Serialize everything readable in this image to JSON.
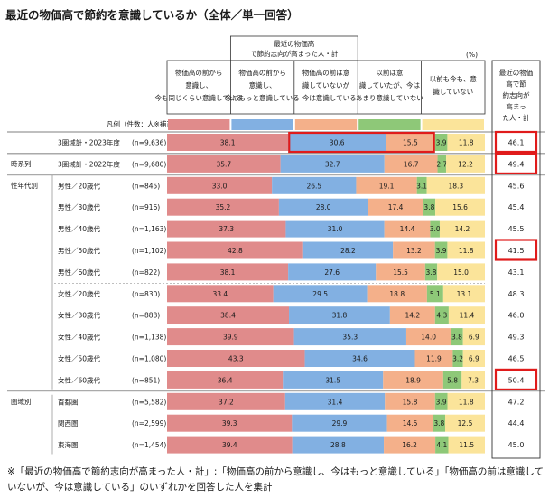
{
  "title": "最近の物価高で節約を意識しているか（全体／単一回答）",
  "footnote": "※「最近の物価高で節約志向が高まった人・計」:「物価高の前から意識し、今はもっと意識している」「物価高の前は意識していないが、今は意識している」のいずれかを回答した人を集計",
  "chart_data": {
    "type": "bar",
    "stacked": true,
    "orientation": "horizontal",
    "unit": "(%)",
    "group_header": "最近の物価高で節約志向が高まった人・計",
    "legend_row_label": "凡例（件数：人※補正後）",
    "total_column_label": "最近の物価高で節約志向が高まった人・計",
    "series": [
      {
        "name": "物価高の前から意識し、今も同じくらい意識している",
        "color": "#e08b8b"
      },
      {
        "name": "物価高の前から意識し、今はもっと意識している",
        "color": "#82b0e2"
      },
      {
        "name": "物価高の前は意識していないが、今は意識している",
        "color": "#f4b08a"
      },
      {
        "name": "以前は意識していたが、今はあまり意識していない",
        "color": "#8ec878"
      },
      {
        "name": "以前も今も、意識していない",
        "color": "#fbe49a"
      }
    ],
    "sections": [
      {
        "label": "",
        "start": 0
      },
      {
        "label": "時系列",
        "start": 1
      },
      {
        "label": "性年代別",
        "start": 2
      },
      {
        "label": "圏域別",
        "start": 12
      }
    ],
    "rows": [
      {
        "label": "3圏域計・2023年度",
        "n": "(n=9,636)",
        "values": [
          38.1,
          30.6,
          15.5,
          3.9,
          11.8
        ],
        "total": "46.1",
        "highlight": true,
        "box_mid": true
      },
      {
        "label": "3圏域計・2022年度",
        "n": "(n=9,680)",
        "values": [
          35.7,
          32.7,
          16.7,
          2.7,
          12.2
        ],
        "total": "49.4",
        "highlight": true
      },
      {
        "label": "男性／20歳代",
        "n": "(n=845)",
        "values": [
          33.0,
          26.5,
          19.1,
          3.1,
          18.3
        ],
        "total": "45.6"
      },
      {
        "label": "男性／30歳代",
        "n": "(n=916)",
        "values": [
          35.2,
          28.0,
          17.4,
          3.8,
          15.6
        ],
        "total": "45.4"
      },
      {
        "label": "男性／40歳代",
        "n": "(n=1,163)",
        "values": [
          37.3,
          31.0,
          14.4,
          3.0,
          14.2
        ],
        "total": "45.5"
      },
      {
        "label": "男性／50歳代",
        "n": "(n=1,102)",
        "values": [
          42.8,
          28.2,
          13.2,
          3.9,
          11.8
        ],
        "total": "41.5",
        "highlight": true
      },
      {
        "label": "男性／60歳代",
        "n": "(n=822)",
        "values": [
          38.1,
          27.6,
          15.5,
          3.8,
          15.0
        ],
        "total": "43.1"
      },
      {
        "label": "女性／20歳代",
        "n": "(n=830)",
        "values": [
          33.4,
          29.5,
          18.8,
          5.1,
          13.1
        ],
        "total": "48.3"
      },
      {
        "label": "女性／30歳代",
        "n": "(n=888)",
        "values": [
          38.4,
          31.8,
          14.2,
          4.3,
          11.4
        ],
        "total": "46.0"
      },
      {
        "label": "女性／40歳代",
        "n": "(n=1,138)",
        "values": [
          39.9,
          35.3,
          14.0,
          3.8,
          6.9
        ],
        "total": "49.3"
      },
      {
        "label": "女性／50歳代",
        "n": "(n=1,080)",
        "values": [
          43.3,
          34.6,
          11.9,
          3.2,
          6.9
        ],
        "total": "46.5"
      },
      {
        "label": "女性／60歳代",
        "n": "(n=851)",
        "values": [
          36.4,
          31.5,
          18.9,
          5.8,
          7.3
        ],
        "total": "50.4",
        "highlight": true
      },
      {
        "label": "首都圏",
        "n": "(n=5,582)",
        "values": [
          37.2,
          31.4,
          15.8,
          3.9,
          11.8
        ],
        "total": "47.2"
      },
      {
        "label": "関西圏",
        "n": "(n=2,599)",
        "values": [
          39.3,
          29.9,
          14.5,
          3.8,
          12.5
        ],
        "total": "44.4"
      },
      {
        "label": "東海圏",
        "n": "(n=1,454)",
        "values": [
          39.4,
          28.8,
          16.2,
          4.1,
          11.5
        ],
        "total": "45.0"
      }
    ]
  }
}
